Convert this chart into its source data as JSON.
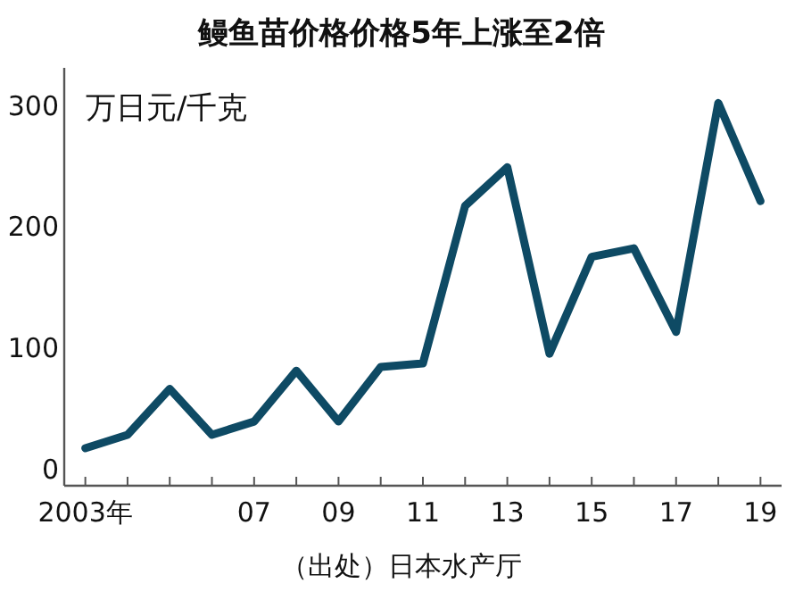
{
  "chart_data": {
    "type": "line",
    "title": "鳗鱼苗价格价格5年上涨至2倍",
    "ylabel": "万日元/千克",
    "annotations": [
      "（出处）日本水产厅"
    ],
    "x": [
      2003,
      2004,
      2005,
      2006,
      2007,
      2008,
      2009,
      2010,
      2011,
      2012,
      2013,
      2014,
      2015,
      2016,
      2017,
      2018,
      2019
    ],
    "series": [
      {
        "color": "#0e4a64",
        "values": [
          16,
          27,
          65,
          27,
          38,
          80,
          38,
          83,
          86,
          216,
          248,
          94,
          174,
          181,
          112,
          301,
          220
        ]
      }
    ],
    "xlim": [
      2002.5,
      2019.5
    ],
    "xticks": [
      {
        "value": 2003,
        "label": "2003年"
      },
      {
        "value": 2004,
        "label": null
      },
      {
        "value": 2005,
        "label": null
      },
      {
        "value": 2006,
        "label": null
      },
      {
        "value": 2007,
        "label": "07"
      },
      {
        "value": 2008,
        "label": null
      },
      {
        "value": 2009,
        "label": "09"
      },
      {
        "value": 2010,
        "label": null
      },
      {
        "value": 2011,
        "label": "11"
      },
      {
        "value": 2012,
        "label": null
      },
      {
        "value": 2013,
        "label": "13"
      },
      {
        "value": 2014,
        "label": null
      },
      {
        "value": 2015,
        "label": "15"
      },
      {
        "value": 2016,
        "label": null
      },
      {
        "value": 2017,
        "label": "17"
      },
      {
        "value": 2018,
        "label": null
      },
      {
        "value": 2019,
        "label": "19"
      }
    ],
    "ylim": [
      -15,
      330
    ],
    "yticks": [
      0,
      100,
      200,
      300
    ],
    "marker": "none",
    "line_style": "solid"
  }
}
